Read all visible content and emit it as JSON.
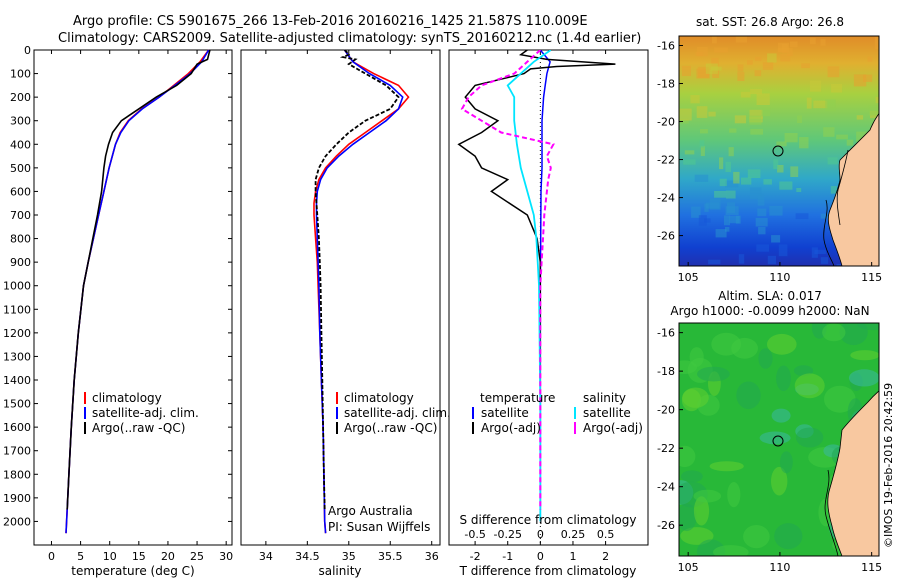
{
  "header": {
    "line1": "Argo profile: CS 5901675_266 13-Feb-2016 20160216_1425 21.587S 110.009E",
    "line2": "Climatology: CARS2009. Satellite-adjusted climatology: synTS_20160212.nc (1.4d earlier)"
  },
  "colors": {
    "climatology": "#ff0000",
    "satellite": "#0000ff",
    "argo": "#000000",
    "sal_satellite": "#00e5ff",
    "sal_argo": "#ff00ff",
    "land": "#f8c8a0"
  },
  "legend": {
    "climatology": "climatology",
    "satellite": "satellite-adj. clim.",
    "argo": "Argo(..raw -QC)",
    "diff_temperature": "temperature",
    "diff_salinity": "salinity",
    "diff_satellite": "satellite",
    "diff_argo": "Argo(-adj)"
  },
  "credits": {
    "line1": "Argo Australia",
    "line2": "PI: Susan Wijffels",
    "watermark": "©IMOS 19-Feb-2016 20:42:59"
  },
  "chart_data": [
    {
      "type": "line",
      "id": "temperature",
      "xlabel": "temperature (deg C)",
      "xticks": [
        0,
        5,
        10,
        15,
        20,
        25,
        30
      ],
      "xlim": [
        -3,
        31
      ],
      "ylim": [
        2100,
        0
      ],
      "yticks": [
        0,
        100,
        200,
        300,
        400,
        500,
        600,
        700,
        800,
        900,
        1000,
        1100,
        1200,
        1300,
        1400,
        1500,
        1600,
        1700,
        1800,
        1900,
        2000
      ],
      "series": [
        {
          "name": "climatology",
          "depth": [
            0,
            50,
            100,
            150,
            200,
            250,
            300,
            350,
            400,
            500,
            600,
            700,
            800,
            900,
            1000,
            1200,
            1400,
            1600,
            1800,
            2000,
            2050
          ],
          "values": [
            27,
            25.5,
            23.5,
            21,
            18.5,
            15.5,
            13.2,
            11.8,
            11,
            9.9,
            9,
            8.1,
            7.2,
            6.3,
            5.5,
            4.6,
            3.9,
            3.4,
            3.0,
            2.6,
            2.5
          ]
        },
        {
          "name": "satellite-adj. clim.",
          "depth": [
            0,
            50,
            100,
            150,
            200,
            250,
            300,
            350,
            400,
            500,
            600,
            700,
            800,
            900,
            1000,
            1200,
            1400,
            1600,
            1800,
            2000,
            2050
          ],
          "values": [
            27,
            25.8,
            23.8,
            21.2,
            18.5,
            15.6,
            13.3,
            11.9,
            11,
            9.9,
            9,
            8.1,
            7.2,
            6.3,
            5.5,
            4.6,
            3.9,
            3.4,
            3.0,
            2.6,
            2.5
          ]
        },
        {
          "name": "Argo(..raw -QC)",
          "depth": [
            0,
            20,
            40,
            60,
            80,
            100,
            150,
            200,
            250,
            300,
            350,
            400,
            450,
            500,
            600,
            700,
            800,
            900,
            1000,
            1200,
            1400,
            1600,
            1800,
            1950
          ],
          "values": [
            27.2,
            27,
            26.8,
            25,
            24.5,
            24,
            21.5,
            18,
            15,
            12,
            10.5,
            9.8,
            9.3,
            9,
            8.6,
            7.9,
            7.1,
            6.3,
            5.5,
            4.6,
            3.9,
            3.4,
            3.0,
            2.7
          ]
        }
      ]
    },
    {
      "type": "line",
      "id": "salinity",
      "xlabel": "salinity",
      "xticks": [
        34,
        34.5,
        35,
        35.5,
        36
      ],
      "xlim": [
        33.7,
        36.1
      ],
      "ylim": [
        2100,
        0
      ],
      "series": [
        {
          "name": "climatology",
          "depth": [
            0,
            50,
            100,
            150,
            200,
            250,
            300,
            350,
            400,
            450,
            500,
            550,
            600,
            650,
            700,
            800,
            900,
            1000,
            1200,
            1400,
            1600,
            1800,
            2000,
            2050
          ],
          "values": [
            34.95,
            35.05,
            35.3,
            35.6,
            35.72,
            35.6,
            35.4,
            35.2,
            35.0,
            34.85,
            34.72,
            34.64,
            34.6,
            34.58,
            34.58,
            34.6,
            34.62,
            34.63,
            34.65,
            34.67,
            34.69,
            34.7,
            34.71,
            34.72
          ]
        },
        {
          "name": "satellite-adj. clim.",
          "depth": [
            0,
            50,
            100,
            150,
            200,
            250,
            300,
            350,
            400,
            450,
            500,
            550,
            600,
            650,
            700,
            800,
            900,
            1000,
            1200,
            1400,
            1600,
            1800,
            2000,
            2050
          ],
          "values": [
            34.95,
            35.05,
            35.25,
            35.5,
            35.65,
            35.6,
            35.45,
            35.25,
            35.05,
            34.88,
            34.74,
            34.66,
            34.62,
            34.61,
            34.61,
            34.62,
            34.63,
            34.64,
            34.65,
            34.67,
            34.69,
            34.7,
            34.71,
            34.72
          ]
        },
        {
          "name": "Argo(..raw -QC)",
          "depth": [
            0,
            10,
            20,
            30,
            40,
            60,
            80,
            100,
            150,
            200,
            250,
            300,
            350,
            400,
            450,
            500,
            550,
            600,
            700,
            800,
            900,
            1000,
            1200,
            1400,
            1600,
            1800,
            1950
          ],
          "values": [
            34.95,
            34.98,
            35.0,
            34.93,
            35.08,
            35.0,
            35.1,
            35.2,
            35.45,
            35.6,
            35.5,
            35.2,
            35.0,
            34.85,
            34.72,
            34.64,
            34.6,
            34.6,
            34.62,
            34.64,
            34.65,
            34.66,
            34.67,
            34.68,
            34.69,
            34.7,
            34.71
          ]
        }
      ]
    },
    {
      "type": "line",
      "id": "differences",
      "xlabel": "T difference from climatology",
      "xticks": [
        -2,
        -1,
        0,
        1,
        2
      ],
      "xlabel2": "S difference from climatology",
      "x2ticks": [
        -0.5,
        -0.25,
        0,
        0.25,
        0.5
      ],
      "x2tick_labels": [
        "-0.5",
        "-0.25",
        "0",
        "0.25",
        "0.5"
      ],
      "xlim": [
        -2.8,
        3.3
      ],
      "ylim": [
        2100,
        0
      ],
      "series": [
        {
          "name": "temperature satellite",
          "depth": [
            0,
            50,
            100,
            150,
            200,
            300,
            400,
            500,
            600,
            800,
            1000,
            1500,
            2000
          ],
          "values": [
            0,
            0.3,
            0.2,
            0.15,
            0.1,
            0.05,
            0.05,
            0.05,
            0.02,
            0.01,
            0,
            0,
            0
          ]
        },
        {
          "name": "temperature Argo(-adj)",
          "depth": [
            0,
            20,
            40,
            60,
            70,
            80,
            100,
            150,
            200,
            250,
            300,
            350,
            400,
            450,
            500,
            550,
            600,
            700,
            800,
            900,
            1000,
            1200,
            1500,
            1800,
            1950
          ],
          "values": [
            -0.4,
            -0.6,
            0.2,
            2.3,
            0.5,
            -0.3,
            -0.5,
            -2.0,
            -2.3,
            -2.0,
            -1.3,
            -1.8,
            -2.5,
            -2.0,
            -1.8,
            -1.0,
            -1.5,
            -0.4,
            -0.1,
            0,
            0,
            0,
            0,
            0,
            0
          ]
        },
        {
          "name": "salinity satellite",
          "depth": [
            0,
            50,
            100,
            150,
            200,
            300,
            400,
            500,
            600,
            700,
            800,
            900,
            1000,
            1500,
            2000
          ],
          "values": [
            0.08,
            -0.05,
            -0.15,
            -0.25,
            -0.2,
            -0.2,
            -0.18,
            -0.15,
            -0.1,
            -0.05,
            -0.03,
            -0.02,
            -0.01,
            0,
            0
          ]
        },
        {
          "name": "salinity Argo(-adj)",
          "depth": [
            0,
            50,
            100,
            150,
            200,
            250,
            300,
            350,
            400,
            450,
            500,
            550,
            600,
            650,
            700,
            800,
            900,
            1000,
            1200,
            1500,
            1800,
            1950
          ],
          "values": [
            0,
            -0.1,
            -0.2,
            -0.45,
            -0.55,
            -0.6,
            -0.45,
            -0.3,
            0.1,
            0.05,
            0.08,
            0.06,
            0.05,
            0.04,
            0.03,
            0.02,
            0.01,
            0,
            0,
            0,
            0,
            0
          ]
        }
      ]
    }
  ],
  "maps": [
    {
      "title": "sat. SST: 26.8 Argo: 26.8",
      "xticks": [
        105,
        110,
        115
      ],
      "yticks": [
        -16,
        -18,
        -20,
        -22,
        -24,
        -26
      ],
      "marker": {
        "lon": 110.009,
        "lat": -21.587
      }
    },
    {
      "title1": "Altim. SLA: 0.017",
      "title2": "Argo h1000: -0.0099 h2000: NaN",
      "xticks": [
        105,
        110,
        115
      ],
      "yticks": [
        -16,
        -18,
        -20,
        -22,
        -24,
        -26
      ],
      "marker": {
        "lon": 110.009,
        "lat": -21.587
      }
    }
  ]
}
